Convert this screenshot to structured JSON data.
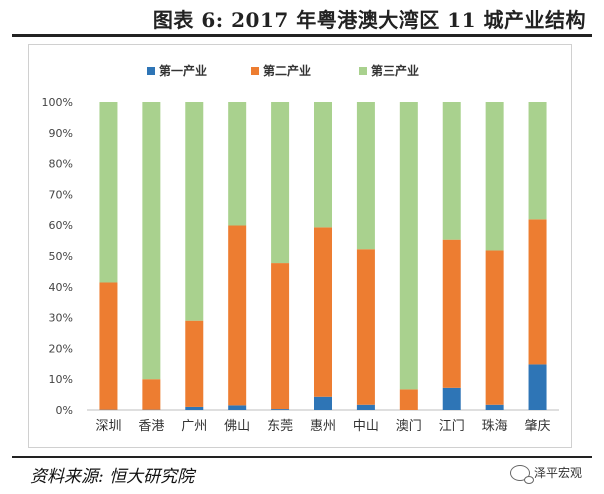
{
  "title": "图表 6: 2017 年粤港澳大湾区 11 城产业结构",
  "source": "资料来源: 恒大研究院",
  "brand": "泽平宏观",
  "brand_icon": "wechat-icon",
  "colors": {
    "primary": "#2e75b6",
    "secondary": "#ed7d31",
    "tertiary": "#a9d18e"
  },
  "chart_data": {
    "type": "bar",
    "stacked": true,
    "percent": true,
    "categories": [
      "深圳",
      "香港",
      "广州",
      "佛山",
      "东莞",
      "惠州",
      "中山",
      "澳门",
      "江门",
      "珠海",
      "肇庆"
    ],
    "series": [
      {
        "name": "第一产业",
        "color": "#2e75b6",
        "values": [
          0.1,
          0.1,
          1.0,
          1.5,
          0.3,
          4.3,
          1.7,
          0.0,
          7.2,
          1.7,
          14.8
        ]
      },
      {
        "name": "第二产业",
        "color": "#ed7d31",
        "values": [
          41.3,
          9.9,
          28.0,
          58.4,
          47.4,
          55.0,
          50.5,
          6.7,
          48.1,
          50.1,
          47.1
        ]
      },
      {
        "name": "第三产业",
        "color": "#a9d18e",
        "values": [
          58.6,
          90.0,
          71.0,
          40.1,
          52.3,
          40.7,
          47.8,
          93.3,
          44.7,
          48.2,
          38.1
        ]
      }
    ],
    "ylim": [
      0,
      100
    ],
    "yticks": [
      "0%",
      "10%",
      "20%",
      "30%",
      "40%",
      "50%",
      "60%",
      "70%",
      "80%",
      "90%",
      "100%"
    ],
    "legend_position": "top-center",
    "grid": false
  }
}
